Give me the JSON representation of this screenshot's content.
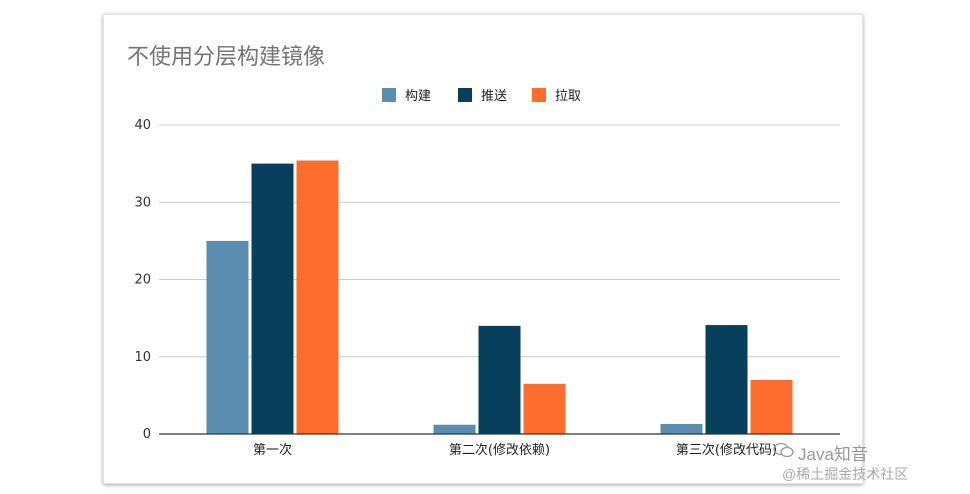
{
  "watermark": {
    "line1": "Java知音",
    "line2": "@稀土掘金技术社区"
  },
  "chart_data": {
    "type": "bar",
    "title": "不使用分层构建镜像",
    "categories": [
      "第一次",
      "第二次(修改依赖)",
      "第三次(修改代码)"
    ],
    "series": [
      {
        "name": "构建",
        "color": "#5b8db0",
        "values": [
          25,
          1.2,
          1.3
        ]
      },
      {
        "name": "推送",
        "color": "#073f5c",
        "values": [
          35,
          14,
          14.1
        ]
      },
      {
        "name": "拉取",
        "color": "#ff6d2e",
        "values": [
          35.4,
          6.5,
          7
        ]
      }
    ],
    "ylim": [
      0,
      40
    ],
    "yticks": [
      0,
      10,
      20,
      30,
      40
    ],
    "grid": true,
    "legend": "top-center"
  }
}
